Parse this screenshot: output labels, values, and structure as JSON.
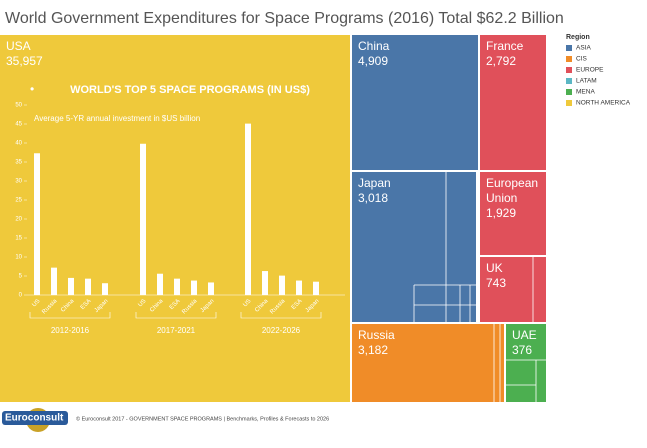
{
  "chart_data": [
    {
      "type": "treemap",
      "title": "World Government Expenditures for Space Programs (2016) Total $62.2 Billion",
      "labels": [
        "USA",
        "China",
        "Japan",
        "France",
        "European Union",
        "UK",
        "Russia",
        "UAE"
      ],
      "values": [
        35957,
        4909,
        3018,
        2792,
        1929,
        743,
        3182,
        376
      ],
      "value_labels": [
        "35,957",
        "4,909",
        "3,018",
        "2,792",
        "1,929",
        "743",
        "3,182",
        "376"
      ],
      "regions": [
        "NORTH AMERICA",
        "ASIA",
        "ASIA",
        "EUROPE",
        "EUROPE",
        "EUROPE",
        "CIS",
        "MENA"
      ],
      "legend": {
        "title": "Region",
        "items": [
          {
            "name": "ASIA",
            "color": "#4a76a8"
          },
          {
            "name": "CIS",
            "color": "#f08c28"
          },
          {
            "name": "EUROPE",
            "color": "#e0505a"
          },
          {
            "name": "LATAM",
            "color": "#5bb7c4"
          },
          {
            "name": "MENA",
            "color": "#4caf50"
          },
          {
            "name": "NORTH AMERICA",
            "color": "#efc93b"
          }
        ]
      }
    },
    {
      "type": "bar",
      "title": "WORLD'S TOP 5 SPACE PROGRAMS (IN US$)",
      "subtitle": "Average 5-YR annual investment in $US billion",
      "color": "#ffffff",
      "ylim": [
        0,
        50
      ],
      "yticks": [
        0,
        5,
        10,
        15,
        20,
        25,
        30,
        35,
        40,
        45,
        50
      ],
      "groups": [
        {
          "label": "2012-2016",
          "categories": [
            "US",
            "Russia",
            "China",
            "ESA",
            "Japan"
          ],
          "values": [
            37.3,
            7.2,
            4.5,
            4.3,
            3.1
          ]
        },
        {
          "label": "2017-2021",
          "categories": [
            "US",
            "China",
            "ESA",
            "Russia",
            "Japan"
          ],
          "values": [
            39.8,
            5.6,
            4.3,
            3.8,
            3.3
          ]
        },
        {
          "label": "2022-2026",
          "categories": [
            "US",
            "China",
            "Russia",
            "ESA",
            "Japan"
          ],
          "values": [
            45.1,
            6.3,
            5.1,
            3.8,
            3.5
          ]
        }
      ]
    }
  ],
  "footer": "© Euroconsult 2017 - GOVERNMENT SPACE PROGRAMS | Benchmarks, Profiles & Forecasts to 2026",
  "logo": "Euroconsult"
}
